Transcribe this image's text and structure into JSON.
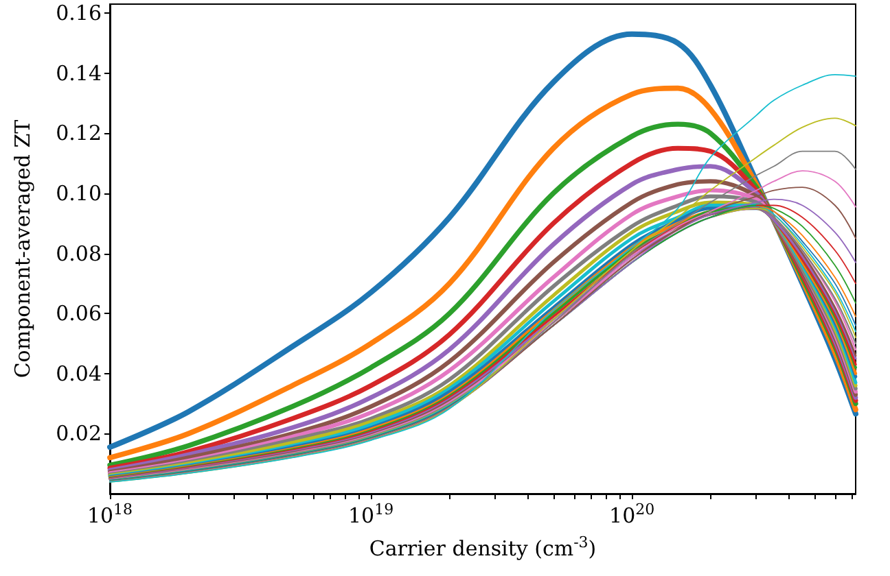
{
  "chart_data": {
    "type": "line",
    "xlabel": "Carrier density (cm$^{-3}$)",
    "ylabel": "Component-averaged ZT",
    "log": "x",
    "grid": false,
    "marker": "none",
    "line_style": "solid",
    "x": [
      1e+18,
      2e+18,
      5e+18,
      1e+19,
      2e+19,
      5e+19,
      1e+20,
      1.5e+20,
      2e+20,
      3e+20,
      3.5e+20,
      4.5e+20,
      6e+20,
      7.2e+20
    ],
    "xlim": [
      1e+18,
      7.2e+20
    ],
    "xticks": [
      {
        "value": 1e+18,
        "label": "10$^{18}$"
      },
      {
        "value": 2e+18,
        "label": null
      },
      {
        "value": 3e+18,
        "label": null
      },
      {
        "value": 4e+18,
        "label": null
      },
      {
        "value": 5e+18,
        "label": null
      },
      {
        "value": 6e+18,
        "label": null
      },
      {
        "value": 7e+18,
        "label": null
      },
      {
        "value": 8e+18,
        "label": null
      },
      {
        "value": 9e+18,
        "label": null
      },
      {
        "value": 1e+19,
        "label": "10$^{19}$"
      },
      {
        "value": 2e+19,
        "label": null
      },
      {
        "value": 3e+19,
        "label": null
      },
      {
        "value": 4e+19,
        "label": null
      },
      {
        "value": 5e+19,
        "label": null
      },
      {
        "value": 6e+19,
        "label": null
      },
      {
        "value": 7e+19,
        "label": null
      },
      {
        "value": 8e+19,
        "label": null
      },
      {
        "value": 9e+19,
        "label": null
      },
      {
        "value": 1e+20,
        "label": "10$^{20}$"
      },
      {
        "value": 2e+20,
        "label": null
      },
      {
        "value": 3e+20,
        "label": null
      },
      {
        "value": 4e+20,
        "label": null
      },
      {
        "value": 5e+20,
        "label": null
      },
      {
        "value": 6e+20,
        "label": null
      },
      {
        "value": 7e+20,
        "label": null
      }
    ],
    "ylim": [
      0,
      0.163
    ],
    "yticks": [
      0.02,
      0.04,
      0.06,
      0.08,
      {
        "value": 0.1,
        "label": "0.10"
      },
      0.12,
      0.14,
      0.16
    ],
    "series": [
      {
        "color": "#1f77b4",
        "values": [
          0.0155,
          0.0273,
          0.049,
          0.067,
          0.092,
          0.137,
          0.153,
          0.15,
          0.136,
          0.104,
          0.091,
          0.07,
          0.045,
          0.0266
        ]
      },
      {
        "color": "#ff7f0e",
        "values": [
          0.012,
          0.02,
          0.036,
          0.05,
          0.07,
          0.115,
          0.133,
          0.135,
          0.128,
          0.103,
          0.091,
          0.071,
          0.047,
          0.028
        ]
      },
      {
        "color": "#2ca02c",
        "values": [
          0.0095,
          0.016,
          0.029,
          0.042,
          0.06,
          0.1,
          0.119,
          0.123,
          0.12,
          0.102,
          0.091,
          0.072,
          0.049,
          0.03
        ]
      },
      {
        "color": "#d62728",
        "values": [
          0.0085,
          0.014,
          0.025,
          0.036,
          0.053,
          0.09,
          0.11,
          0.115,
          0.114,
          0.101,
          0.091,
          0.073,
          0.05,
          0.031
        ]
      },
      {
        "color": "#9467bd",
        "values": [
          0.0078,
          0.013,
          0.022,
          0.032,
          0.048,
          0.083,
          0.103,
          0.108,
          0.109,
          0.1,
          0.091,
          0.074,
          0.051,
          0.032
        ]
      },
      {
        "color": "#8c564b",
        "values": [
          0.0072,
          0.012,
          0.02,
          0.029,
          0.044,
          0.077,
          0.097,
          0.103,
          0.104,
          0.099,
          0.091,
          0.074,
          0.052,
          0.033
        ]
      },
      {
        "color": "#e377c2",
        "values": [
          0.0068,
          0.011,
          0.019,
          0.027,
          0.041,
          0.072,
          0.093,
          0.099,
          0.101,
          0.098,
          0.091,
          0.075,
          0.053,
          0.034
        ]
      },
      {
        "color": "#7f7f7f",
        "values": [
          0.0064,
          0.0105,
          0.018,
          0.025,
          0.038,
          0.069,
          0.089,
          0.096,
          0.099,
          0.097,
          0.091,
          0.075,
          0.054,
          0.035
        ]
      },
      {
        "color": "#bcbd22",
        "values": [
          0.0061,
          0.01,
          0.017,
          0.024,
          0.036,
          0.066,
          0.087,
          0.094,
          0.097,
          0.096,
          0.091,
          0.076,
          0.055,
          0.036
        ]
      },
      {
        "color": "#17becf",
        "values": [
          0.0058,
          0.0095,
          0.016,
          0.023,
          0.035,
          0.064,
          0.085,
          0.092,
          0.096,
          0.096,
          0.091,
          0.076,
          0.056,
          0.037
        ]
      },
      {
        "color": "#1f77b4",
        "values": [
          0.0056,
          0.0092,
          0.0155,
          0.022,
          0.034,
          0.062,
          0.083,
          0.091,
          0.095,
          0.095,
          0.091,
          0.077,
          0.057,
          0.039
        ]
      },
      {
        "color": "#ff7f0e",
        "values": [
          0.0054,
          0.009,
          0.015,
          0.0215,
          0.033,
          0.061,
          0.082,
          0.09,
          0.094,
          0.095,
          0.091,
          0.077,
          0.058,
          0.04
        ]
      },
      {
        "color": "#2ca02c",
        "values": [
          0.0052,
          0.0088,
          0.0147,
          0.021,
          0.0325,
          0.06,
          0.081,
          0.089,
          0.094,
          0.095,
          0.091,
          0.078,
          0.059,
          0.042
        ]
      },
      {
        "color": "#d62728",
        "values": [
          0.005,
          0.0086,
          0.0144,
          0.0206,
          0.032,
          0.059,
          0.08,
          0.089,
          0.093,
          0.095,
          0.091,
          0.078,
          0.06,
          0.043
        ]
      },
      {
        "color": "#9467bd",
        "values": [
          0.0049,
          0.0084,
          0.0141,
          0.0202,
          0.0315,
          0.058,
          0.079,
          0.088,
          0.093,
          0.095,
          0.091,
          0.079,
          0.061,
          0.045
        ]
      },
      {
        "color": "#8c564b",
        "values": [
          0.0048,
          0.0082,
          0.0138,
          0.0198,
          0.031,
          0.057,
          0.078,
          0.088,
          0.093,
          0.095,
          0.092,
          0.08,
          0.062,
          0.046
        ]
      },
      {
        "color": "#e377c2",
        "values": [
          0.0047,
          0.008,
          0.0135,
          0.0195,
          0.0305,
          0.057,
          0.078,
          0.087,
          0.092,
          0.095,
          0.092,
          0.081,
          0.064,
          0.048
        ]
      },
      {
        "color": "#7f7f7f",
        "values": [
          0.0046,
          0.0078,
          0.0133,
          0.0192,
          0.03,
          0.056,
          0.077,
          0.087,
          0.092,
          0.095,
          0.092,
          0.081,
          0.065,
          0.05
        ]
      },
      {
        "color": "#bcbd22",
        "values": [
          0.0045,
          0.0077,
          0.0131,
          0.019,
          0.0297,
          0.056,
          0.077,
          0.087,
          0.092,
          0.095,
          0.093,
          0.082,
          0.067,
          0.052
        ]
      },
      {
        "color": "#17becf",
        "values": [
          0.0044,
          0.0076,
          0.013,
          0.0188,
          0.0295,
          0.056,
          0.077,
          0.087,
          0.092,
          0.096,
          0.093,
          0.083,
          0.068,
          0.054
        ]
      },
      {
        "color": "#1f77b4",
        "values": [
          0.0044,
          0.0075,
          0.0129,
          0.0187,
          0.0293,
          0.056,
          0.077,
          0.087,
          0.092,
          0.096,
          0.094,
          0.084,
          0.07,
          0.056
        ]
      },
      {
        "color": "#ff7f0e",
        "values": [
          null,
          null,
          null,
          null,
          null,
          null,
          null,
          null,
          null,
          0.096,
          0.094,
          0.086,
          0.072,
          0.059
        ]
      },
      {
        "color": "#2ca02c",
        "values": [
          0.0042,
          0.0073,
          0.0127,
          0.0185,
          0.029,
          0.056,
          0.077,
          0.087,
          0.092,
          0.096,
          0.095,
          0.089,
          0.076,
          0.0635
        ]
      },
      {
        "color": "#d62728",
        "values": [
          null,
          null,
          null,
          null,
          null,
          null,
          null,
          null,
          null,
          0.096,
          0.096,
          0.092,
          0.081,
          0.07
        ]
      },
      {
        "color": "#9467bd",
        "values": [
          0.0041,
          0.0071,
          0.0125,
          0.0183,
          0.0288,
          0.056,
          0.077,
          0.088,
          0.093,
          0.097,
          0.098,
          0.096,
          0.087,
          0.077
        ]
      },
      {
        "color": "#8c564b",
        "values": [
          0.0041,
          0.0071,
          0.0124,
          0.0182,
          0.0287,
          0.056,
          0.078,
          0.088,
          0.094,
          0.099,
          0.101,
          0.102,
          0.096,
          0.085
        ]
      },
      {
        "color": "#e377c2",
        "values": [
          0.004,
          0.007,
          0.0123,
          0.0181,
          0.0286,
          0.057,
          0.079,
          0.089,
          0.094,
          0.101,
          0.104,
          0.1075,
          0.104,
          0.0955
        ]
      },
      {
        "color": "#7f7f7f",
        "values": [
          0.004,
          0.0069,
          0.0122,
          0.018,
          0.0285,
          0.057,
          0.08,
          0.09,
          0.097,
          0.106,
          0.109,
          0.114,
          0.114,
          0.108
        ]
      },
      {
        "color": "#bcbd22",
        "values": [
          0.0039,
          0.0068,
          0.0121,
          0.0179,
          0.0284,
          0.058,
          0.081,
          0.092,
          0.101,
          0.112,
          0.116,
          0.122,
          0.125,
          0.1225
        ]
      },
      {
        "color": "#17becf",
        "values": [
          0.0039,
          0.0068,
          0.012,
          0.0178,
          0.0283,
          0.061,
          0.082,
          0.095,
          0.112,
          0.126,
          0.131,
          0.136,
          0.1395,
          0.139
        ]
      }
    ]
  }
}
